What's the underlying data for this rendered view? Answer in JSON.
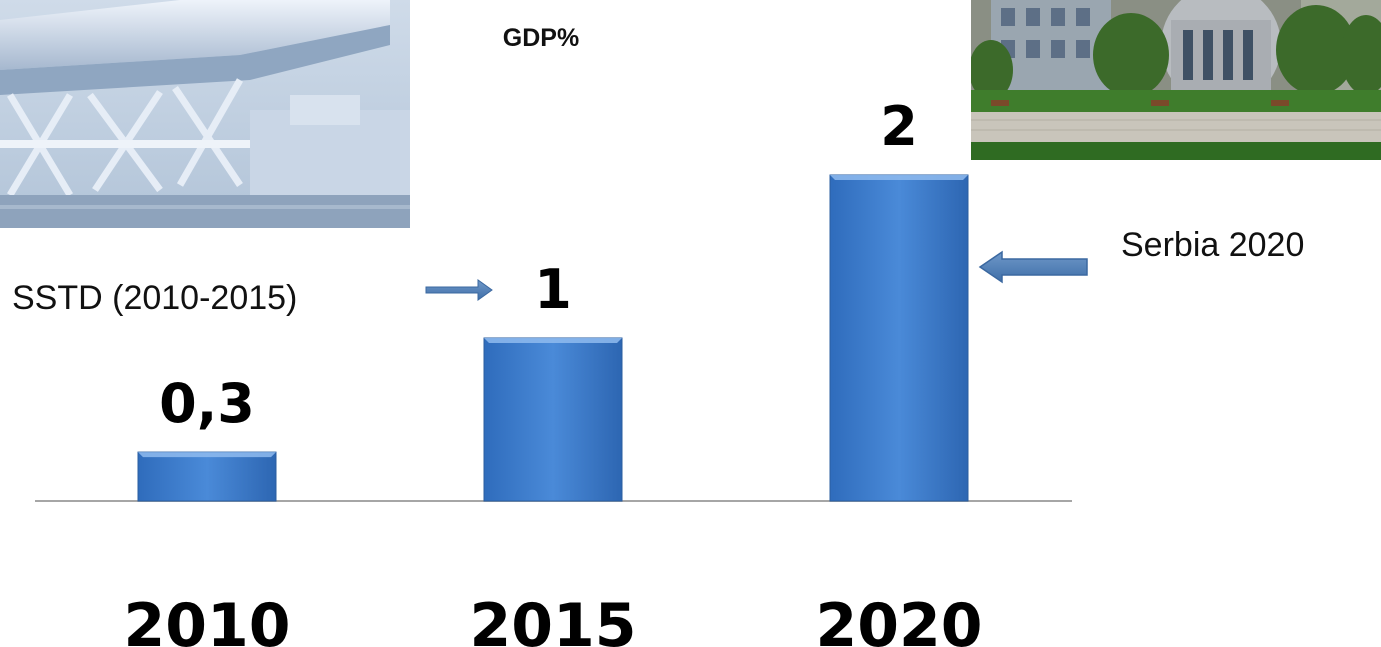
{
  "chart_data": {
    "type": "bar",
    "title": "GDP%",
    "categories": [
      "2010",
      "2015",
      "2020"
    ],
    "values": [
      0.3,
      1,
      2
    ],
    "data_labels": [
      "0,3",
      "1",
      "2"
    ],
    "ylim": [
      0,
      2
    ],
    "grid": false,
    "legend": "none",
    "bar_color": "#3d7ccb",
    "annotations": [
      {
        "text": "SSTD (2010-2015)",
        "points_to": "2015",
        "side": "left"
      },
      {
        "text": "Serbia 2020",
        "points_to": "2020",
        "side": "right"
      }
    ]
  },
  "images": [
    {
      "name": "building-render-photo",
      "subject": "modern building architectural render"
    },
    {
      "name": "campus-building-photo",
      "subject": "building with trees and paved plaza"
    }
  ]
}
